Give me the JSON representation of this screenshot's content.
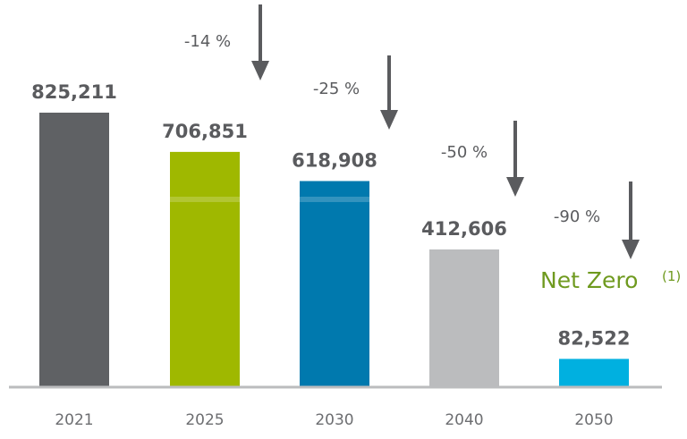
{
  "chart_data": {
    "type": "bar",
    "categories": [
      "2021",
      "2025",
      "2030",
      "2040",
      "2050"
    ],
    "values": [
      825211,
      706851,
      618908,
      412606,
      82522
    ],
    "value_labels": [
      "825,211",
      "706,851",
      "618,908",
      "412,606",
      "82,522"
    ],
    "colors": [
      "#5f6164",
      "#9fb800",
      "#0079ae",
      "#bbbcbe",
      "#00b0e0"
    ],
    "reductions": [
      "-14 %",
      "-25 %",
      "-50 %",
      "-90 %"
    ],
    "annotation": {
      "text": "Net Zero",
      "superscript": "(1)",
      "color": "#6f9a1f"
    },
    "grid": false,
    "legend": "none",
    "ylim": [
      0,
      825211
    ]
  }
}
